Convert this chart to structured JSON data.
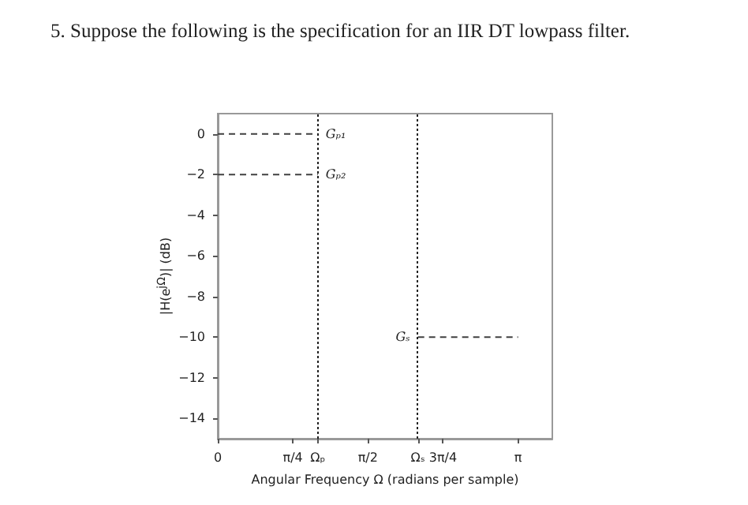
{
  "chart_data": {
    "type": "line",
    "title": "5. Suppose the following is the specification for an IIR DT lowpass filter.",
    "xlabel": "Angular Frequency Ω (radians per sample)",
    "ylabel": "|H(e$^{jΩ}$)| (dB)",
    "xlim": [
      0,
      3.5
    ],
    "ylim": [
      -15,
      1
    ],
    "xticks": [
      0,
      {
        "value": 0.785,
        "label": "π/4"
      },
      {
        "value": 1.047,
        "label": "Ωₚ"
      },
      {
        "value": 1.571,
        "label": "π/2"
      },
      {
        "value": 2.094,
        "label": "Ωₛ"
      },
      {
        "value": 2.356,
        "label": "3π/4"
      },
      {
        "value": 3.142,
        "label": "π"
      }
    ],
    "yticks": [
      0,
      {
        "value": -2,
        "label": "−2"
      },
      {
        "value": -4,
        "label": "−4"
      },
      {
        "value": -6,
        "label": "−6"
      },
      {
        "value": -8,
        "label": "−8"
      },
      {
        "value": -10,
        "label": "−10"
      },
      {
        "value": -12,
        "label": "−12"
      },
      {
        "value": -14,
        "label": "−14"
      }
    ],
    "series": [
      {
        "name": "Gₚ₁",
        "color": "#404040",
        "x": [
          0,
          1.047
        ],
        "values": [
          0,
          0
        ]
      },
      {
        "name": "Gₚ₂",
        "color": "#404040",
        "x": [
          0,
          1.047
        ],
        "values": [
          -2,
          -2
        ]
      },
      {
        "name": "Gₛ",
        "color": "#404040",
        "x": [
          2.094,
          3.142
        ],
        "values": [
          -10,
          -10
        ]
      }
    ],
    "line_style": "dashed",
    "marker": "none",
    "grid": false,
    "legend": false,
    "ref_lines": [
      {
        "axis": "x",
        "value": 1.047,
        "color": "#202020",
        "line_style": "dotted"
      },
      {
        "axis": "x",
        "value": 2.094,
        "color": "#202020",
        "line_style": "dotted"
      }
    ]
  }
}
